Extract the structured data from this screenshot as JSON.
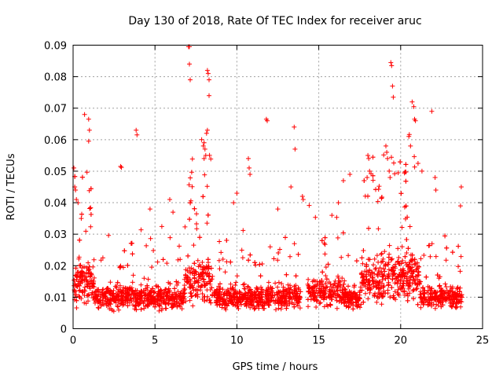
{
  "chart_data": {
    "type": "scatter",
    "title": "Day 130 of 2018, Rate Of TEC Index for receiver aruc",
    "xlabel": "GPS time / hours",
    "ylabel": "ROTI / TECUs",
    "xlim": [
      0,
      25
    ],
    "ylim": [
      0,
      0.09
    ],
    "xticks": [
      0,
      5,
      10,
      15,
      20,
      25
    ],
    "yticks": [
      0,
      0.01,
      0.02,
      0.03,
      0.04,
      0.05,
      0.06,
      0.07,
      0.08,
      0.09
    ],
    "xtick_labels": [
      "0",
      "5",
      "10",
      "15",
      "20",
      "25"
    ],
    "ytick_labels": [
      "0",
      "0.01",
      "0.02",
      "0.03",
      "0.04",
      "0.05",
      "0.06",
      "0.07",
      "0.08",
      "0.09"
    ],
    "grid": true,
    "marker": "+",
    "color": "#ff0000",
    "series": [
      {
        "name": "ROTI",
        "note": "dense cloud of ~8000 points, mostly 0.005–0.02, spikes above; data gap between ~13.9 and ~14.3 h",
        "x": [
          7.05,
          7.1,
          7.1,
          7.15,
          8.2,
          8.25,
          8.3,
          8.3,
          19.4,
          19.45,
          19.5,
          19.55,
          0.7,
          0.95,
          1.0,
          0.95,
          11.8,
          11.85,
          13.5,
          13.55,
          20.7,
          20.8,
          20.85,
          20.9,
          21.9,
          2.9,
          2.95,
          3.85,
          3.9,
          8.0,
          8.05,
          8.1,
          8.15,
          8.2,
          7.85,
          7.95,
          8.0,
          0.05,
          0.1,
          0.15,
          0.2,
          0.3,
          0.5,
          18.0,
          18.05,
          18.1,
          17.95,
          19.1,
          19.15,
          19.2,
          19.3,
          19.35,
          10.7,
          10.75,
          10.8,
          16.5,
          16.9,
          20.5,
          20.6,
          21.3,
          22.1,
          22.15,
          23.7,
          23.65,
          14.0,
          14.05,
          13.3,
          4.7,
          5.9,
          6.1,
          9.8,
          10.0,
          12.5,
          15.8,
          16.2
        ],
        "y": [
          0.0895,
          0.0895,
          0.084,
          0.079,
          0.082,
          0.081,
          0.079,
          0.074,
          0.0845,
          0.0835,
          0.077,
          0.0735,
          0.068,
          0.0665,
          0.063,
          0.0595,
          0.0665,
          0.066,
          0.064,
          0.057,
          0.072,
          0.0705,
          0.0665,
          0.066,
          0.069,
          0.0515,
          0.0512,
          0.063,
          0.0615,
          0.059,
          0.057,
          0.055,
          0.062,
          0.063,
          0.06,
          0.058,
          0.054,
          0.051,
          0.045,
          0.044,
          0.041,
          0.04,
          0.035,
          0.055,
          0.054,
          0.05,
          0.048,
          0.058,
          0.056,
          0.054,
          0.05,
          0.048,
          0.054,
          0.051,
          0.049,
          0.047,
          0.049,
          0.061,
          0.058,
          0.05,
          0.048,
          0.044,
          0.045,
          0.039,
          0.042,
          0.041,
          0.045,
          0.038,
          0.041,
          0.037,
          0.04,
          0.043,
          0.038,
          0.036,
          0.04
        ]
      }
    ]
  }
}
